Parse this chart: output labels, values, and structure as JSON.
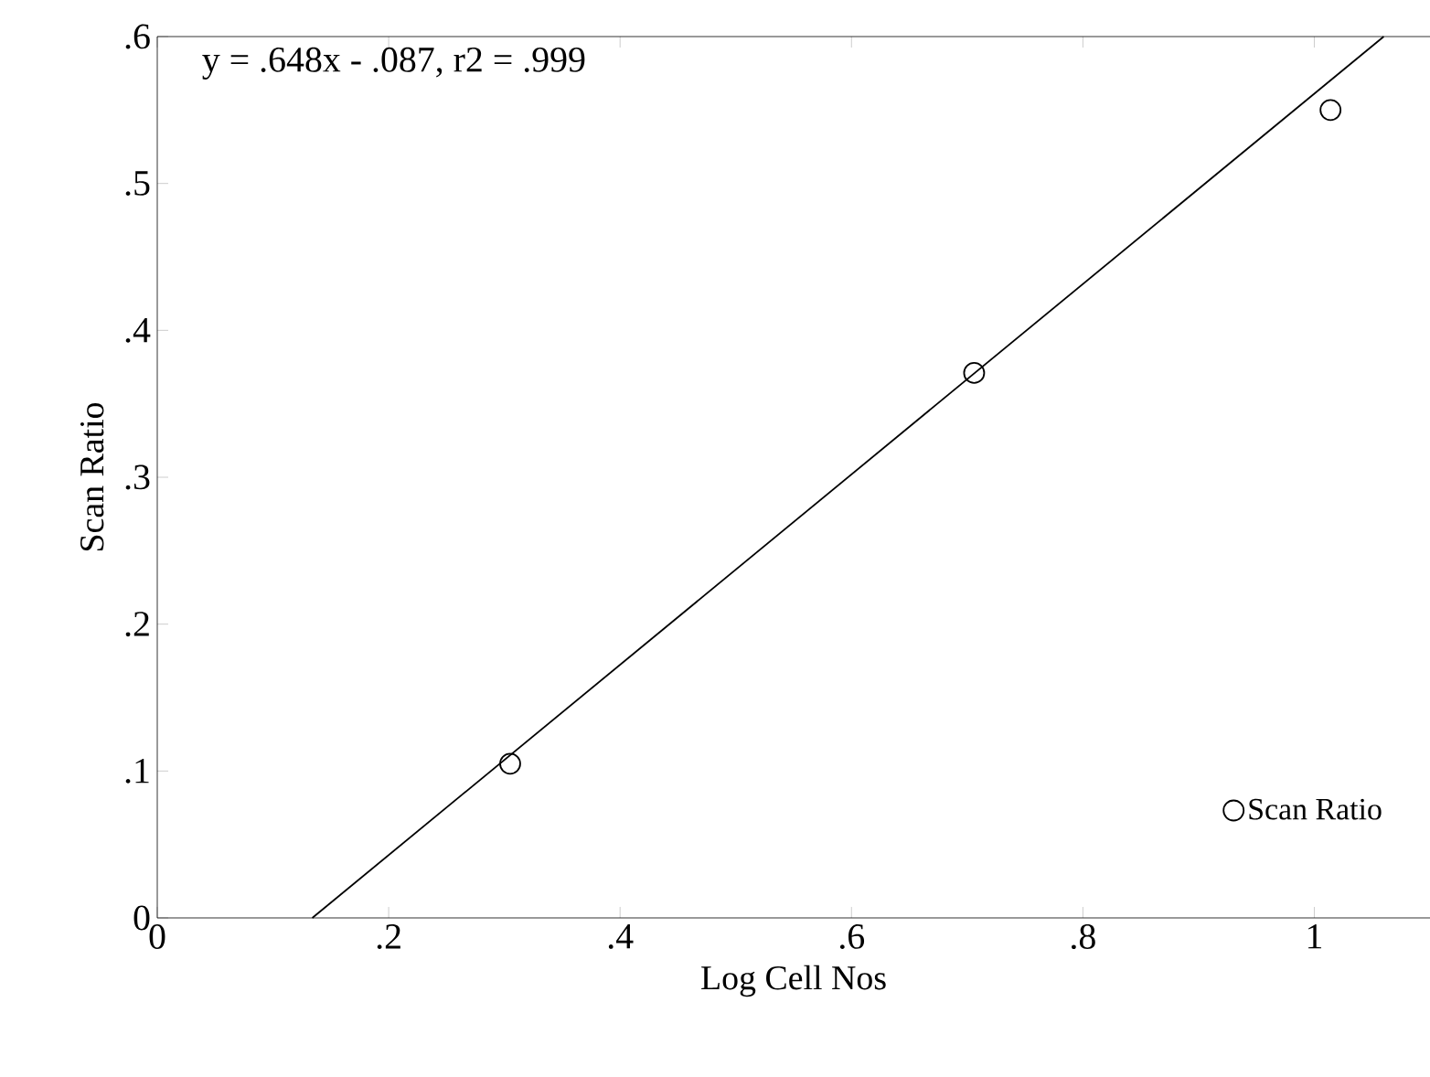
{
  "chart_data": {
    "type": "scatter",
    "xlabel": "Log Cell Nos",
    "ylabel": "Scan Ratio",
    "annotations": [
      "y = .648x - .087, r2 = .999"
    ],
    "series": [
      {
        "name": "Scan Ratio",
        "color": "#000000",
        "marker": "circle",
        "x": [
          0.305,
          0.706,
          1.014
        ],
        "values": [
          0.105,
          0.371,
          0.55
        ]
      },
      {
        "type": "line",
        "color": "#000000",
        "line_style": "solid",
        "marker": "none",
        "x": [
          0.134,
          1.06
        ],
        "values": [
          0,
          0.6
        ]
      }
    ],
    "xlim": [
      0,
      1.1
    ],
    "ylim": [
      0,
      0.6
    ],
    "xticks": [
      0,
      {
        "value": 0.2,
        "label": ".2"
      },
      {
        "value": 0.4,
        "label": ".4"
      },
      {
        "value": 0.6,
        "label": ".6"
      },
      {
        "value": 0.8,
        "label": ".8"
      },
      1
    ],
    "yticks": [
      0,
      {
        "value": 0.1,
        "label": ".1"
      },
      {
        "value": 0.2,
        "label": ".2"
      },
      {
        "value": 0.3,
        "label": ".3"
      },
      {
        "value": 0.4,
        "label": ".4"
      },
      {
        "value": 0.5,
        "label": ".5"
      },
      {
        "value": 0.6,
        "label": ".6"
      }
    ],
    "grid": false,
    "legend": "bottom right"
  }
}
